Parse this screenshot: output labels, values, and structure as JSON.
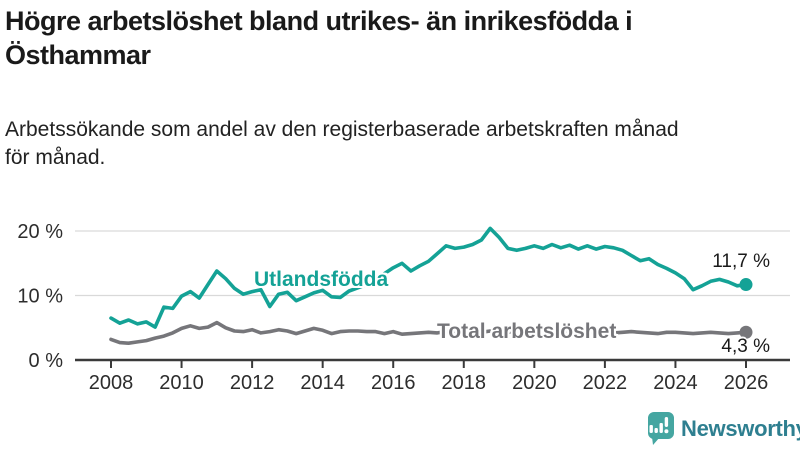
{
  "header": {
    "title_lines": [
      "Högre arbetslöshet bland utrikes- än inrikesfödda i",
      "Östhammar"
    ],
    "subtitle_lines": [
      "Arbetssökande som andel av den registerbaserade arbetskraften månad",
      "för månad."
    ]
  },
  "chart_data": {
    "type": "line",
    "title": "Högre arbetslöshet bland utrikes- än inrikesfödda i Östhammar",
    "subtitle": "Arbetssökande som andel av den registerbaserade arbetskraften månad för månad.",
    "xlabel": "",
    "ylabel": "",
    "ylim": [
      0,
      22
    ],
    "xlim": [
      2007,
      2027.2
    ],
    "grid": "horizontal",
    "legend_position": "inline-labels",
    "y_ticks": [
      {
        "value": 0,
        "label": "0 %"
      },
      {
        "value": 10,
        "label": "10 %"
      },
      {
        "value": 20,
        "label": "20 %"
      }
    ],
    "x_ticks": [
      {
        "value": 2008,
        "label": "2008"
      },
      {
        "value": 2010,
        "label": "2010"
      },
      {
        "value": 2012,
        "label": "2012"
      },
      {
        "value": 2014,
        "label": "2014"
      },
      {
        "value": 2016,
        "label": "2016"
      },
      {
        "value": 2018,
        "label": "2018"
      },
      {
        "value": 2020,
        "label": "2020"
      },
      {
        "value": 2022,
        "label": "2022"
      },
      {
        "value": 2024,
        "label": "2024"
      },
      {
        "value": 2026,
        "label": "2026"
      }
    ],
    "x_unit": "year (monthly series, sampled quarterly)",
    "x": [
      2008,
      2008.25,
      2008.5,
      2008.75,
      2009,
      2009.25,
      2009.5,
      2009.75,
      2010,
      2010.25,
      2010.5,
      2010.75,
      2011,
      2011.25,
      2011.5,
      2011.75,
      2012,
      2012.25,
      2012.5,
      2012.75,
      2013,
      2013.25,
      2013.5,
      2013.75,
      2014,
      2014.25,
      2014.5,
      2014.75,
      2015,
      2015.25,
      2015.5,
      2015.75,
      2016,
      2016.25,
      2016.5,
      2016.75,
      2017,
      2017.25,
      2017.5,
      2017.75,
      2018,
      2018.25,
      2018.5,
      2018.75,
      2019,
      2019.25,
      2019.5,
      2019.75,
      2020,
      2020.25,
      2020.5,
      2020.75,
      2021,
      2021.25,
      2021.5,
      2021.75,
      2022,
      2022.25,
      2022.5,
      2022.75,
      2023,
      2023.25,
      2023.5,
      2023.75,
      2024,
      2024.25,
      2024.5,
      2024.75,
      2025,
      2025.25,
      2025.5,
      2025.75,
      2026
    ],
    "series": [
      {
        "name": "Utlandsfödda",
        "color": "#14a296",
        "end_value": 11.7,
        "end_label": "11,7 %",
        "values": [
          6.5,
          5.7,
          6.2,
          5.6,
          5.9,
          5.1,
          8.2,
          8.0,
          9.9,
          10.6,
          9.6,
          11.7,
          13.8,
          12.6,
          11.1,
          10.2,
          10.6,
          10.9,
          8.3,
          10.2,
          10.5,
          9.2,
          9.8,
          10.4,
          10.8,
          9.8,
          9.7,
          10.7,
          11.2,
          11.7,
          12.5,
          13.4,
          14.3,
          15.0,
          13.8,
          14.6,
          15.3,
          16.5,
          17.7,
          17.3,
          17.5,
          17.9,
          18.6,
          20.4,
          19.0,
          17.3,
          17.0,
          17.3,
          17.7,
          17.3,
          17.9,
          17.4,
          17.8,
          17.2,
          17.7,
          17.2,
          17.6,
          17.4,
          17.0,
          16.2,
          15.4,
          15.7,
          14.8,
          14.2,
          13.5,
          12.6,
          10.9,
          11.5,
          12.2,
          12.5,
          12.1,
          11.5,
          11.7
        ]
      },
      {
        "name": "Total arbetslöshet",
        "color": "#76767a",
        "end_value": 4.3,
        "end_label": "4,3 %",
        "values": [
          3.2,
          2.7,
          2.6,
          2.8,
          3.0,
          3.4,
          3.7,
          4.2,
          4.9,
          5.3,
          4.9,
          5.1,
          5.8,
          5.0,
          4.5,
          4.4,
          4.7,
          4.2,
          4.4,
          4.7,
          4.5,
          4.1,
          4.5,
          4.9,
          4.6,
          4.1,
          4.4,
          4.5,
          4.5,
          4.4,
          4.4,
          4.1,
          4.4,
          4.0,
          4.1,
          4.2,
          4.3,
          4.2,
          4.4,
          4.3,
          4.2,
          4.4,
          4.3,
          4.5,
          4.4,
          4.3,
          4.5,
          4.4,
          4.6,
          4.5,
          4.7,
          4.5,
          4.6,
          4.4,
          4.5,
          4.3,
          4.4,
          4.2,
          4.3,
          4.4,
          4.3,
          4.2,
          4.1,
          4.3,
          4.3,
          4.2,
          4.1,
          4.2,
          4.3,
          4.2,
          4.1,
          4.2,
          4.3
        ]
      }
    ],
    "colors": {
      "axis": "#3a3a3a",
      "gridline": "#d9d9d9",
      "tick_text": "#2d2d2d"
    }
  },
  "footer": {
    "brand": "Newsworthy",
    "brand_icon_color": "#45a6a1",
    "brand_text_color": "#2e7f90"
  }
}
